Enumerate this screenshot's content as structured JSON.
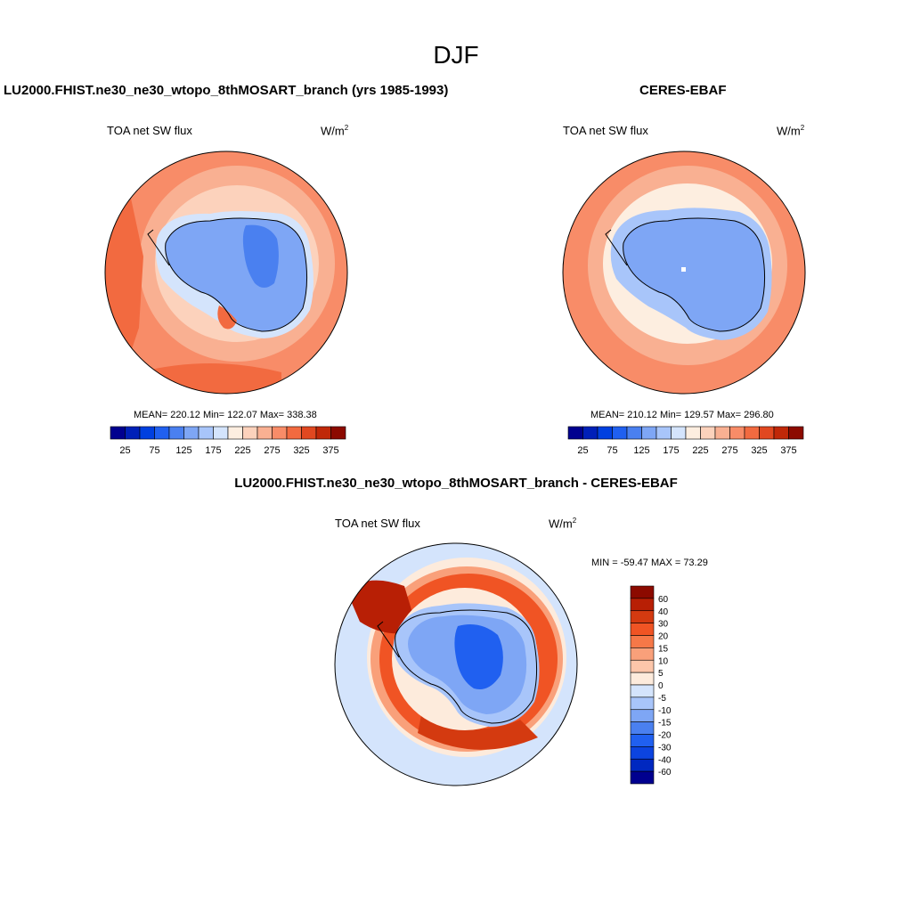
{
  "title": "DJF",
  "panels": {
    "model": {
      "title": "LU2000.FHIST.ne30_ne30_wtopo_8thMOSART_branch (yrs 1985-1993)",
      "left_label": "TOA net SW flux",
      "units": "W/m",
      "units_sup": "2",
      "stats": "MEAN= 220.12  Min= 122.07  Max= 338.38"
    },
    "obs": {
      "title": "CERES-EBAF",
      "left_label": "TOA net SW flux",
      "units": "W/m",
      "units_sup": "2",
      "stats": "MEAN= 210.12  Min= 129.57  Max= 296.80"
    },
    "diff": {
      "title": "LU2000.FHIST.ne30_ne30_wtopo_8thMOSART_branch - CERES-EBAF",
      "left_label": "TOA net SW flux",
      "units": "W/m",
      "units_sup": "2",
      "stats": "MIN = -59.47 MAX =  73.29"
    }
  },
  "colorbar_main": {
    "colors": [
      "#00008f",
      "#0020b8",
      "#0040e0",
      "#2060f0",
      "#4a80f0",
      "#7ea6f5",
      "#a8c5fa",
      "#d4e4fc",
      "#fdeee0",
      "#fcd2bc",
      "#f9b092",
      "#f88c68",
      "#f26a40",
      "#e14820",
      "#c02808",
      "#8c0a00"
    ],
    "tick_labels": [
      "25",
      "75",
      "125",
      "175",
      "225",
      "275",
      "325",
      "375"
    ]
  },
  "colorbar_diff": {
    "colors": [
      "#8c0a00",
      "#b81f05",
      "#d43a10",
      "#f05424",
      "#f67848",
      "#f9a07a",
      "#fcc6aa",
      "#fdebdc",
      "#d4e4fc",
      "#a8c5fa",
      "#7ea6f5",
      "#4a80f0",
      "#2060f0",
      "#0c44e0",
      "#0028c0",
      "#00008f"
    ],
    "tick_labels": [
      "60",
      "40",
      "30",
      "20",
      "15",
      "10",
      "5",
      "0",
      "-5",
      "-10",
      "-15",
      "-20",
      "-30",
      "-40",
      "-60"
    ]
  },
  "fields": {
    "model_colors": {
      "ocean_outer": "#f88c68",
      "ocean_mid": "#f9b092",
      "ocean_inner": "#fcd2bc",
      "ice_edge": "#d4e4fc",
      "ice": "#7ea6f5",
      "ice_dark": "#4a80f0",
      "hot": "#f26a40"
    },
    "obs_colors": {
      "ocean_outer": "#f88c68",
      "ocean_mid": "#f9b092",
      "ocean_inner": "#fdeee0",
      "ice_edge": "#a8c5fa",
      "ice": "#7ea6f5",
      "ice_dark": "#7ea6f5",
      "hot": "#f26a40"
    },
    "diff_colors": {
      "outer": "#d4e4fc",
      "ring1": "#fdebdc",
      "ring2": "#f9a07a",
      "ring3": "#f05424",
      "ring4": "#d43a10",
      "ring5": "#b81f05",
      "ice": "#7ea6f5",
      "ice_dark": "#2060f0",
      "ice_light": "#a8c5fa"
    }
  }
}
